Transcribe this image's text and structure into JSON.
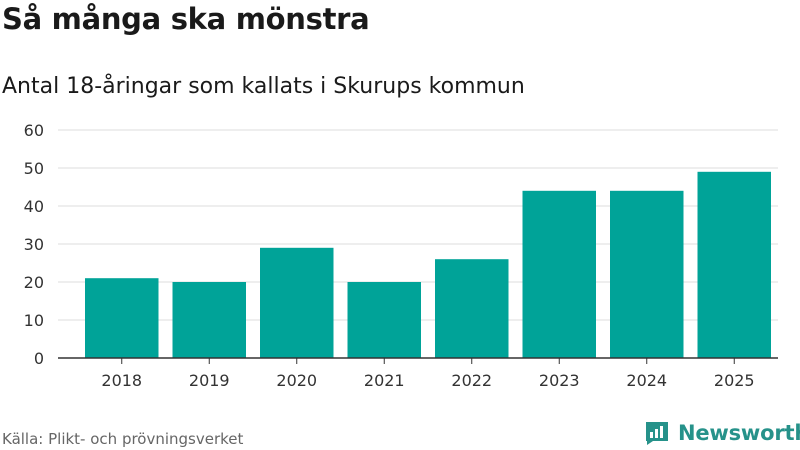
{
  "header": {
    "title": "Så många ska mönstra",
    "subtitle": "Antal 18-åringar som kallats i Skurups kommun"
  },
  "footer": {
    "source": "Källa: Plikt- och prövningsverket",
    "brand": "Newsworthy",
    "brand_icon": "newsworthy-logo-icon",
    "brand_color": "#26928a"
  },
  "chart_data": {
    "type": "bar",
    "categories": [
      "2018",
      "2019",
      "2020",
      "2021",
      "2022",
      "2023",
      "2024",
      "2025"
    ],
    "values": [
      21,
      20,
      29,
      20,
      26,
      44,
      44,
      49
    ],
    "ylim": [
      0,
      60
    ],
    "yticks": [
      0,
      10,
      20,
      30,
      40,
      50,
      60
    ],
    "grid": true,
    "bar_color": "#00a398",
    "grid_color": "#dddddd",
    "axis_color": "#333333"
  }
}
